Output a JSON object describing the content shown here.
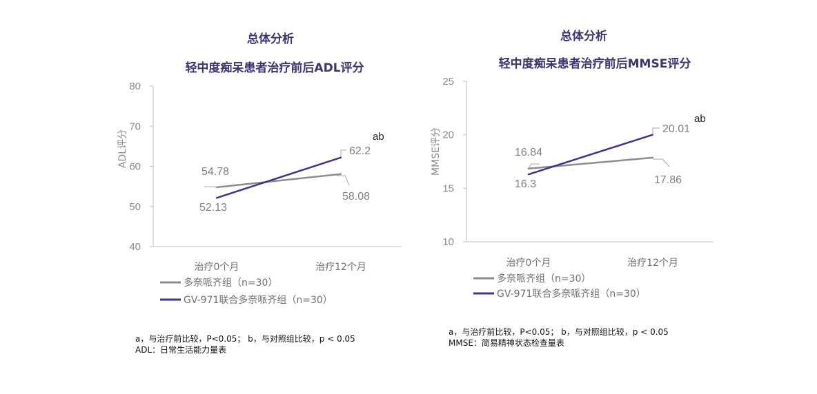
{
  "chart_data": [
    {
      "type": "line",
      "title": [
        "总体分析",
        "轻中度痴呆患者治疗前后ADL评分"
      ],
      "xlabel": "",
      "ylabel": "ADL评分",
      "categories": [
        "治疗0个月",
        "治疗12个月"
      ],
      "ylim": [
        40,
        80
      ],
      "yticks": [
        40,
        50,
        60,
        70,
        80
      ],
      "series": [
        {
          "name": "多奈哌齐组（n=30）",
          "values": [
            54.78,
            58.08
          ],
          "labels": [
            "54.78",
            "58.08"
          ],
          "color": "#8c8c8c"
        },
        {
          "name": "GV-971联合多奈哌齐组（n=30）",
          "values": [
            52.13,
            62.2
          ],
          "labels": [
            "52.13",
            "62.2"
          ],
          "color": "#3d348b"
        }
      ],
      "annotation": "ab",
      "legend": "bottom-left",
      "grid": false,
      "footnotes": [
        "a，与治疗前比较，P<0.05； b，与对照组比较，p < 0.05",
        "ADL：日常生活能力量表"
      ]
    },
    {
      "type": "line",
      "title": [
        "总体分析",
        "轻中度痴呆患者治疗前后MMSE评分"
      ],
      "xlabel": "",
      "ylabel": "MMSE评分",
      "categories": [
        "治疗0个月",
        "治疗12个月"
      ],
      "ylim": [
        10,
        25
      ],
      "yticks": [
        10,
        15,
        20,
        25
      ],
      "series": [
        {
          "name": "多奈哌齐组（n=30）",
          "values": [
            16.84,
            17.86
          ],
          "labels": [
            "16.84",
            "17.86"
          ],
          "color": "#8c8c8c"
        },
        {
          "name": "GV-971联合多奈哌齐组（n=30）",
          "values": [
            16.3,
            20.01
          ],
          "labels": [
            "16.3",
            "20.01"
          ],
          "color": "#3d348b"
        }
      ],
      "annotation": "ab",
      "legend": "bottom-left",
      "grid": false,
      "footnotes": [
        "a，与治疗前比较，P<0.05； b，与对照组比较，p < 0.05",
        "MMSE：简易精神状态检查量表"
      ]
    }
  ]
}
